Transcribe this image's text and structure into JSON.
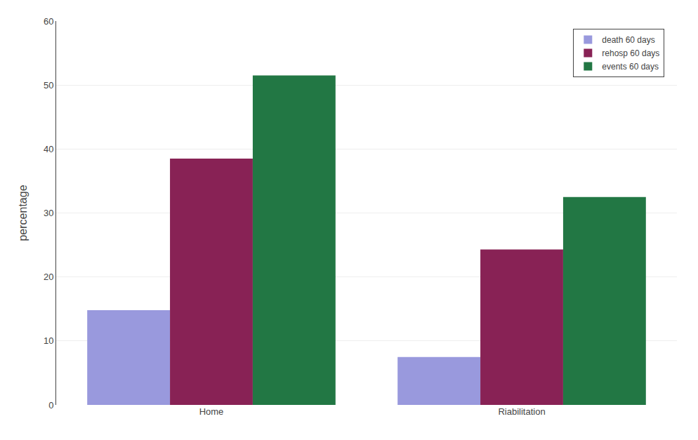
{
  "chart_data": {
    "type": "bar",
    "categories": [
      "Home",
      "Riabilitation"
    ],
    "series": [
      {
        "name": "death 60 days",
        "color": "#9999dd",
        "values": [
          14.8,
          7.5
        ]
      },
      {
        "name": "rehosp 60 days",
        "color": "#882255",
        "values": [
          38.5,
          24.3
        ]
      },
      {
        "name": "events 60 days",
        "color": "#227744",
        "values": [
          51.5,
          32.5
        ]
      }
    ],
    "y_label": "percentage",
    "ylim": [
      0,
      60
    ],
    "yticks": [
      0,
      10,
      20,
      30,
      40,
      50,
      60
    ],
    "grid": true,
    "legend": "upper right"
  }
}
